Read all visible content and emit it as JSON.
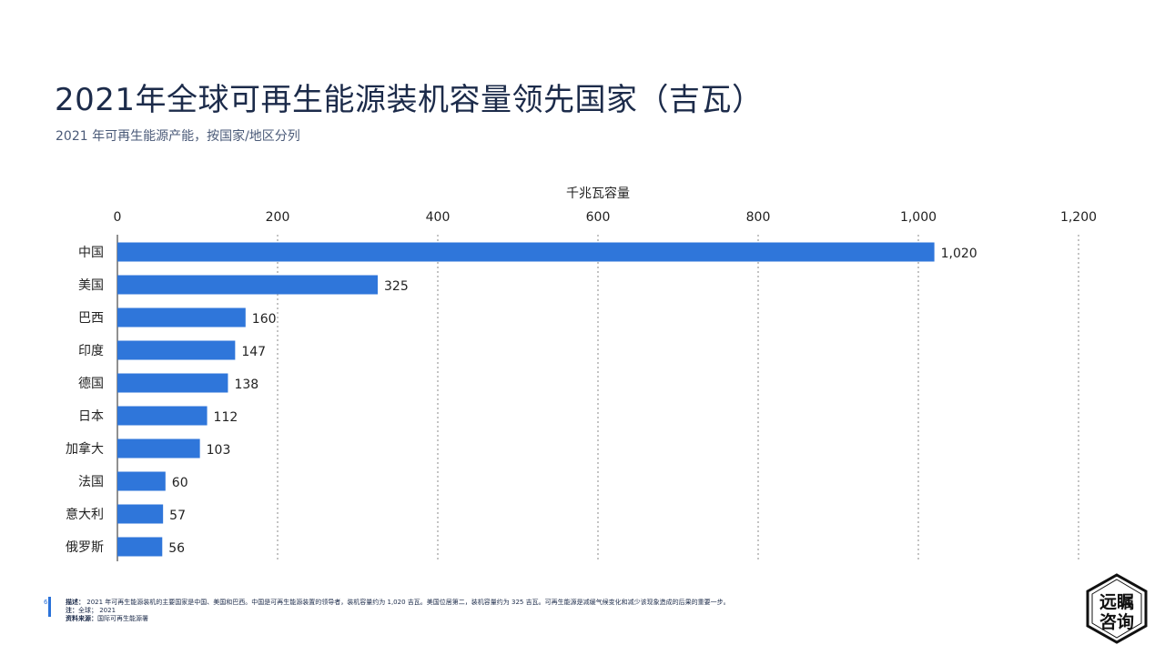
{
  "header": {
    "title": "2021年全球可再生能源装机容量领先国家（吉瓦）",
    "subtitle": "2021 年可再生能源产能，按国家/地区分列"
  },
  "colors": {
    "bar": "#2f76da",
    "title": "#1c2b4a",
    "accent": "#2b72d9"
  },
  "chart_data": {
    "type": "bar",
    "orientation": "horizontal",
    "title": "",
    "xlabel": "千兆瓦容量",
    "ylabel": "",
    "xlim": [
      0,
      1200
    ],
    "ticks": [
      0,
      200,
      400,
      600,
      800,
      1000,
      1200
    ],
    "tick_labels": [
      "0",
      "200",
      "400",
      "600",
      "800",
      "1,000",
      "1,200"
    ],
    "axis_position": "top",
    "grid": true,
    "categories": [
      "中国",
      "美国",
      "巴西",
      "印度",
      "德国",
      "日本",
      "加拿大",
      "法国",
      "意大利",
      "俄罗斯"
    ],
    "values": [
      1020,
      325,
      160,
      147,
      138,
      112,
      103,
      60,
      57,
      56
    ],
    "value_labels": [
      "1,020",
      "325",
      "160",
      "147",
      "138",
      "112",
      "103",
      "60",
      "57",
      "56"
    ]
  },
  "footer": {
    "page_number": "6",
    "desc_label": "描述：",
    "desc_text": "2021 年可再生能源装机的主要国家是中国、美国和巴西。中国是可再生能源装置的领导者，装机容量约为 1,020 吉瓦。美国位居第二，装机容量约为 325 吉瓦。可再生能源是减缓气候变化和减少该现象造成的后果的重要一步。",
    "note_label": "注：",
    "note_text": "全球； 2021",
    "source_label": "资料来源：",
    "source_text": "国际可再生能源署"
  },
  "logo": {
    "line1": "远瞩",
    "line2": "咨询"
  }
}
